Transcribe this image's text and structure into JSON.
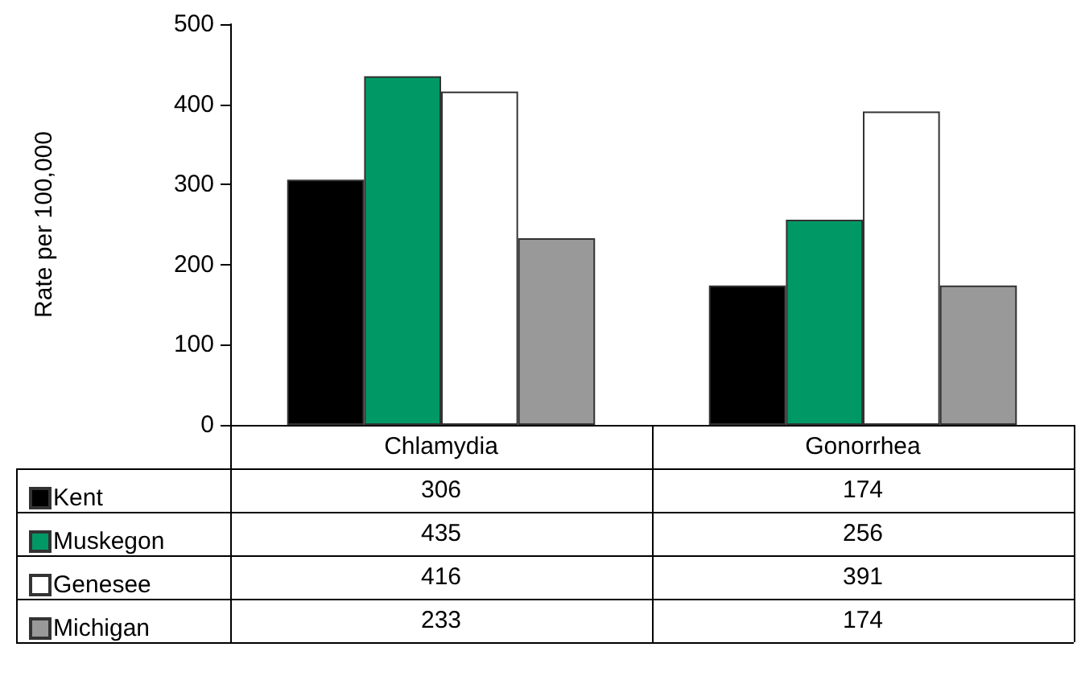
{
  "chart_data": {
    "type": "bar",
    "ylabel": "Rate per 100,000",
    "categories": [
      "Chlamydia",
      "Gonorrhea"
    ],
    "series": [
      {
        "name": "Kent",
        "color": "#000000",
        "values": [
          306,
          174
        ]
      },
      {
        "name": "Muskegon",
        "color": "#009966",
        "values": [
          435,
          256
        ]
      },
      {
        "name": "Genesee",
        "color": "#ffffff",
        "values": [
          416,
          391
        ]
      },
      {
        "name": "Michigan",
        "color": "#999999",
        "values": [
          233,
          174
        ]
      }
    ],
    "ylim": [
      0,
      500
    ],
    "yticks": [
      0,
      100,
      200,
      300,
      400,
      500
    ],
    "data_labels": true,
    "legend": "bottom left"
  }
}
